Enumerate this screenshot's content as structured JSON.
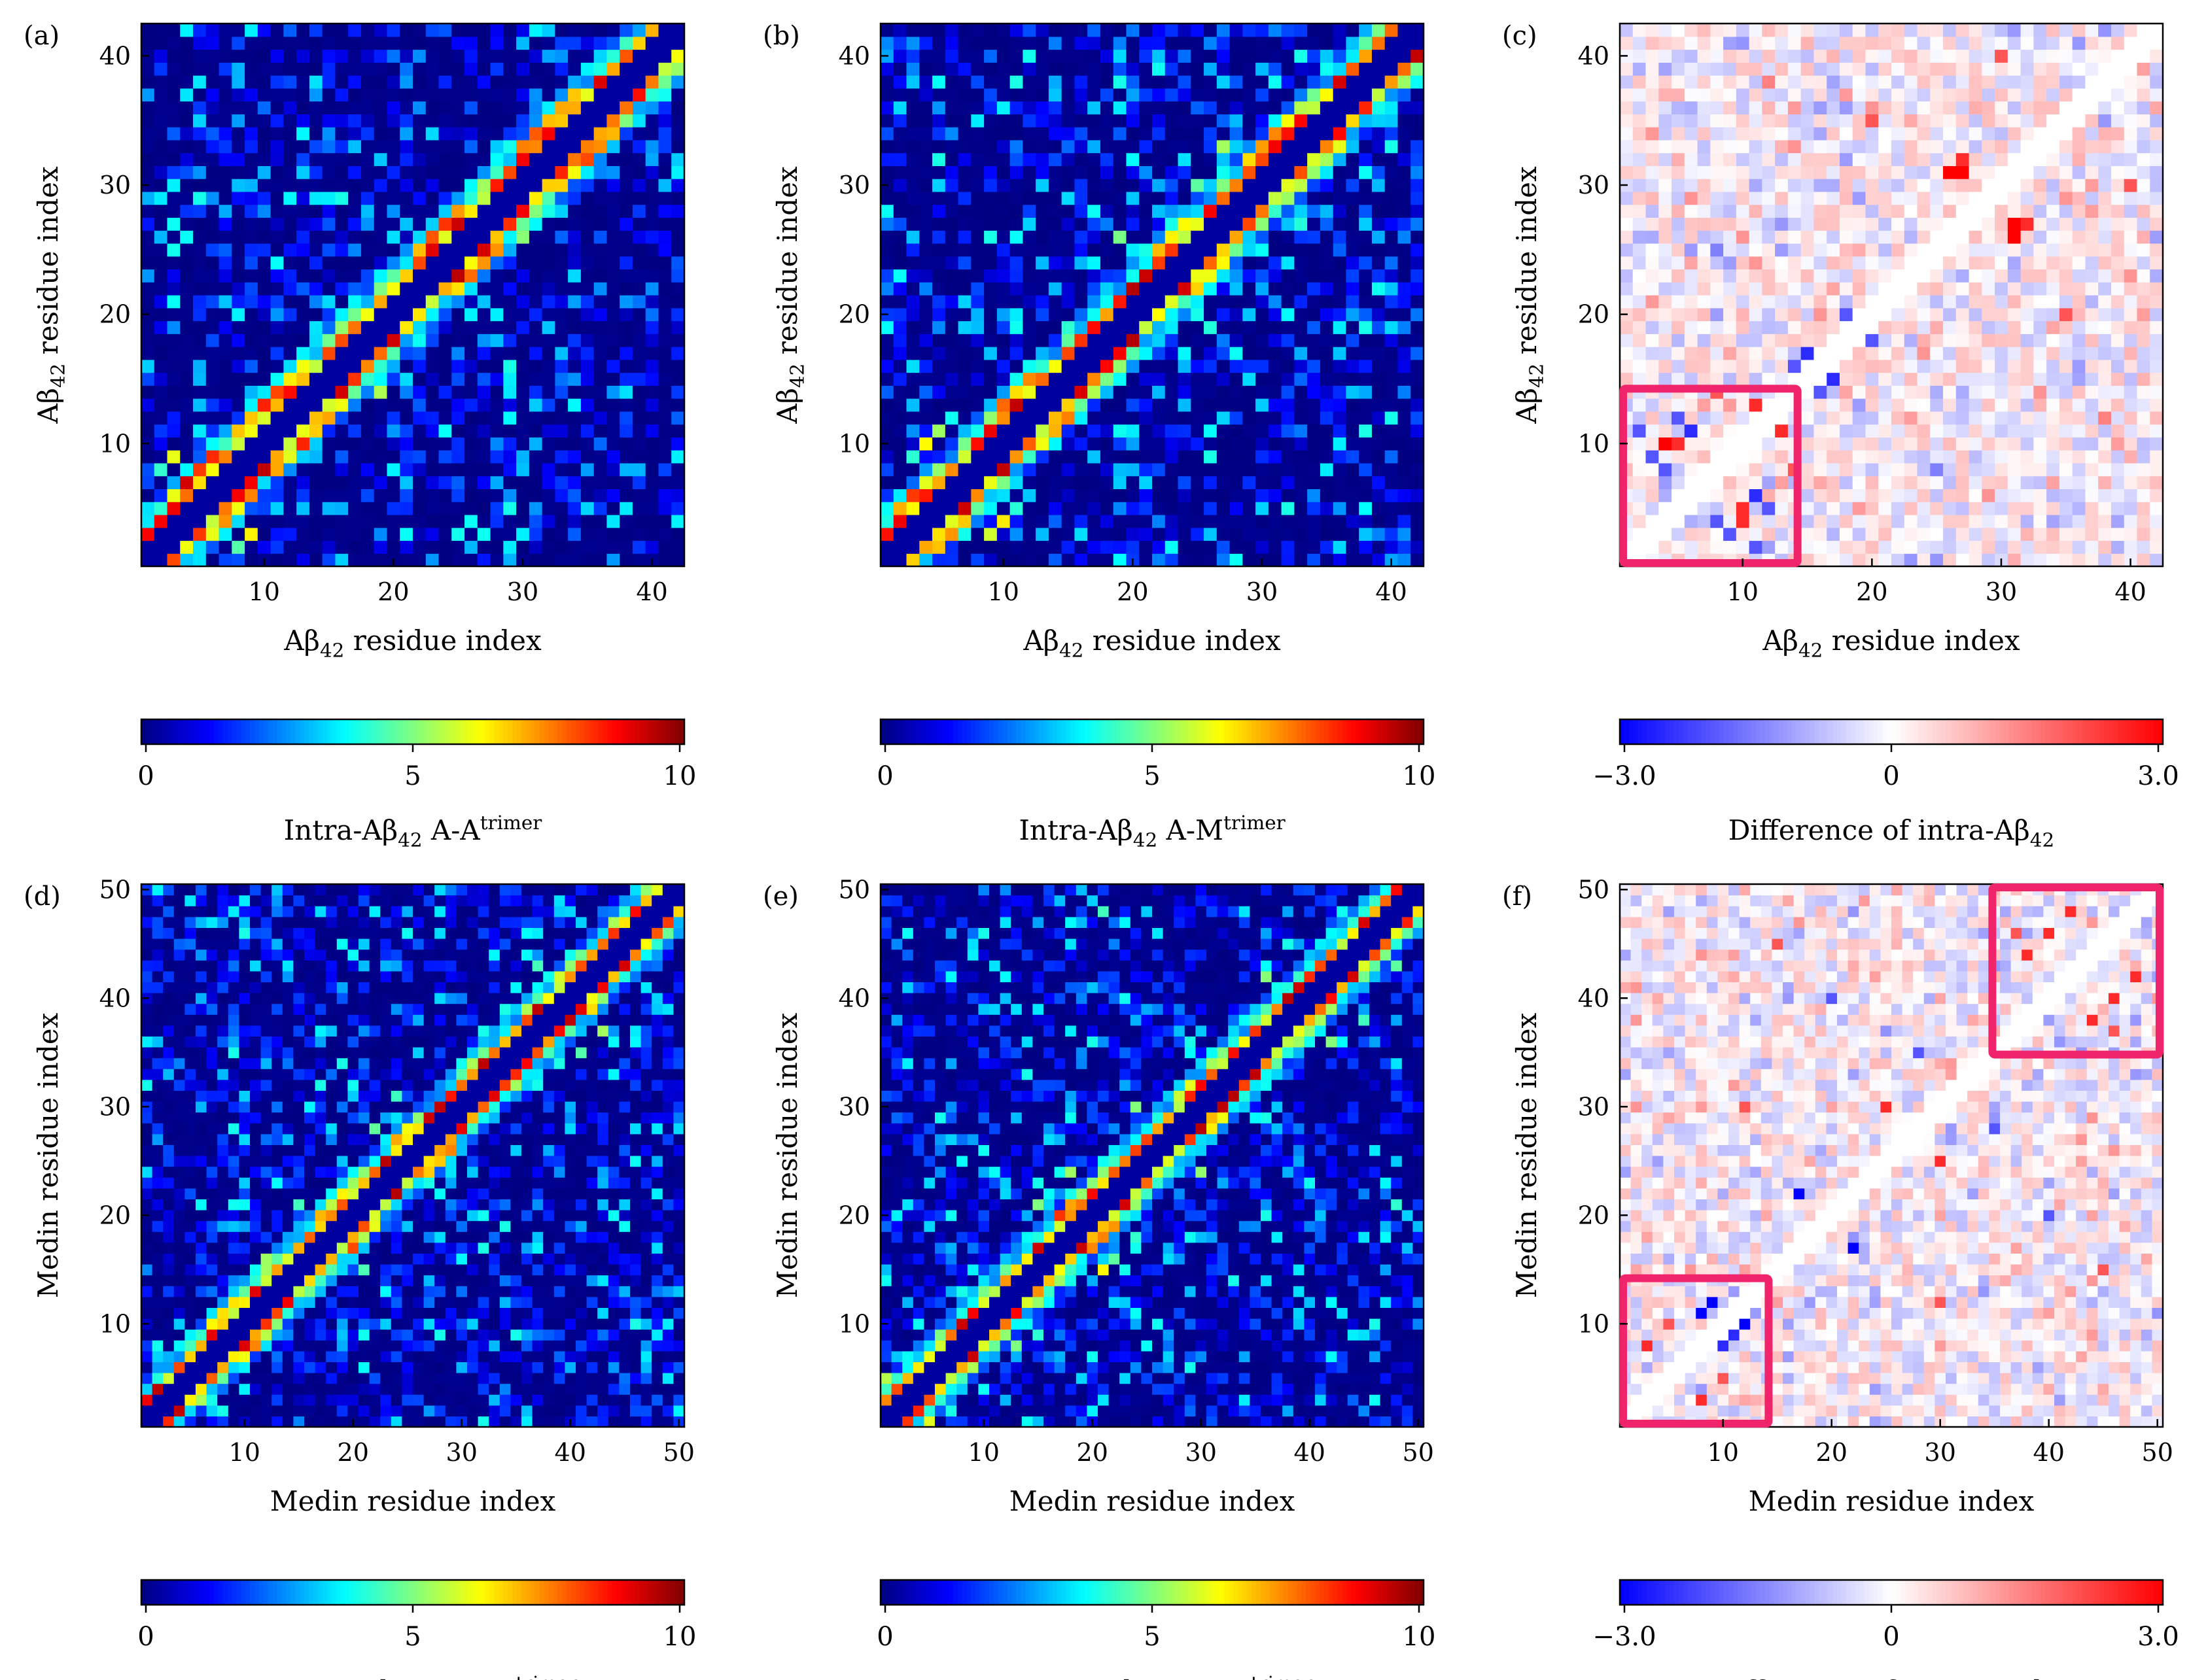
{
  "chart_data": [
    {
      "panel": "(a)",
      "type": "heatmap",
      "n": 42,
      "xlabel_main": "Aβ",
      "xlabel_sub": "42",
      "xlabel_rest": " residue index",
      "ylabel_main": "Aβ",
      "ylabel_sub": "42",
      "ylabel_rest": " residue index",
      "xticks": [
        10,
        20,
        30,
        40
      ],
      "yticks": [
        10,
        20,
        30,
        40
      ],
      "scale": "jet",
      "vmin": 0,
      "vmax": 10,
      "colorbar_ticks": [
        "0",
        "5",
        "10"
      ],
      "colorbar_label_main": "Intra-Aβ",
      "colorbar_label_sub": "42",
      "colorbar_label_rest": " A-A",
      "colorbar_label_sup": "trimer",
      "hot_spots": [
        [
          4,
          7,
          7
        ],
        [
          5,
          8,
          6
        ],
        [
          6,
          9,
          6
        ],
        [
          10,
          13,
          6
        ],
        [
          11,
          14,
          6
        ],
        [
          12,
          15,
          5
        ],
        [
          13,
          16,
          5
        ],
        [
          17,
          20,
          4
        ],
        [
          22,
          25,
          5
        ],
        [
          23,
          26,
          6
        ],
        [
          24,
          27,
          6
        ],
        [
          25,
          28,
          5
        ],
        [
          31,
          34,
          6
        ],
        [
          32,
          35,
          6
        ],
        [
          33,
          36,
          6
        ],
        [
          34,
          37,
          6
        ],
        [
          30,
          33,
          5
        ],
        [
          8,
          11,
          5
        ],
        [
          9,
          12,
          5
        ],
        [
          3,
          6,
          5
        ],
        [
          2,
          8,
          4
        ],
        [
          3,
          9,
          4
        ],
        [
          5,
          11,
          3
        ],
        [
          14,
          19,
          3
        ],
        [
          20,
          26,
          3
        ],
        [
          26,
          30,
          3
        ],
        [
          20,
          28,
          2.5
        ],
        [
          28,
          33,
          3
        ]
      ]
    },
    {
      "panel": "(b)",
      "type": "heatmap",
      "n": 42,
      "xlabel_main": "Aβ",
      "xlabel_sub": "42",
      "xlabel_rest": " residue index",
      "ylabel_main": "Aβ",
      "ylabel_sub": "42",
      "ylabel_rest": " residue index",
      "xticks": [
        10,
        20,
        30,
        40
      ],
      "yticks": [
        10,
        20,
        30,
        40
      ],
      "scale": "jet",
      "vmin": 0,
      "vmax": 10,
      "colorbar_ticks": [
        "0",
        "5",
        "10"
      ],
      "colorbar_label_main": "Intra-Aβ",
      "colorbar_label_sub": "42",
      "colorbar_label_rest": " A-M",
      "colorbar_label_sup": "trimer",
      "hot_spots": [
        [
          2,
          5,
          6
        ],
        [
          3,
          6,
          6
        ],
        [
          4,
          7,
          5
        ],
        [
          10,
          13,
          6
        ],
        [
          11,
          14,
          6
        ],
        [
          12,
          15,
          5
        ],
        [
          22,
          25,
          5
        ],
        [
          23,
          26,
          5
        ],
        [
          24,
          27,
          5
        ],
        [
          29,
          32,
          5
        ],
        [
          30,
          33,
          5
        ],
        [
          31,
          34,
          5
        ],
        [
          32,
          35,
          5
        ],
        [
          33,
          36,
          5
        ],
        [
          3,
          9,
          4
        ],
        [
          4,
          10,
          4
        ],
        [
          5,
          11,
          3
        ],
        [
          6,
          12,
          3
        ],
        [
          15,
          19,
          3
        ],
        [
          20,
          25,
          3
        ],
        [
          25,
          30,
          3
        ],
        [
          19,
          26,
          2.5
        ],
        [
          27,
          33,
          3
        ]
      ]
    },
    {
      "panel": "(c)",
      "type": "heatmap",
      "n": 42,
      "xlabel_main": "Aβ",
      "xlabel_sub": "42",
      "xlabel_rest": " residue index",
      "ylabel_main": "Aβ",
      "ylabel_sub": "42",
      "ylabel_rest": " residue index",
      "xticks": [
        10,
        20,
        30,
        40
      ],
      "yticks": [
        10,
        20,
        30,
        40
      ],
      "scale": "bwr",
      "vmin": -3.0,
      "vmax": 3.0,
      "colorbar_ticks": [
        "−3.0",
        "0",
        "3.0"
      ],
      "colorbar_label_main": "Difference of intra-Aβ",
      "colorbar_label_sub": "42",
      "colorbar_label_rest": "",
      "colorbar_label_sup": "",
      "highlight_boxes": [
        [
          1,
          14,
          1,
          14
        ]
      ],
      "hot_spots": [
        [
          4,
          10,
          3
        ],
        [
          5,
          10,
          2.5
        ],
        [
          11,
          13,
          2.5
        ],
        [
          8,
          14,
          2
        ],
        [
          6,
          11,
          -2.5
        ],
        [
          3,
          9,
          -2
        ],
        [
          4,
          8,
          -2
        ],
        [
          5,
          12,
          -2
        ],
        [
          2,
          11,
          -2
        ],
        [
          10,
          4,
          2.5
        ],
        [
          10,
          5,
          2.5
        ],
        [
          13,
          11,
          2.5
        ],
        [
          14,
          8,
          2
        ],
        [
          11,
          6,
          -2.5
        ],
        [
          9,
          3,
          -2
        ],
        [
          8,
          4,
          -2
        ],
        [
          12,
          5,
          -2
        ],
        [
          11,
          2,
          -2
        ],
        [
          26,
          31,
          3
        ],
        [
          27,
          31,
          3
        ],
        [
          27,
          32,
          2.5
        ],
        [
          31,
          26,
          3
        ],
        [
          31,
          27,
          3
        ],
        [
          32,
          27,
          2.5
        ],
        [
          15,
          17,
          -2.5
        ],
        [
          17,
          15,
          -2.5
        ],
        [
          14,
          16,
          -2
        ],
        [
          16,
          14,
          -2
        ],
        [
          18,
          20,
          -2
        ],
        [
          20,
          18,
          -2
        ],
        [
          20,
          35,
          2
        ],
        [
          35,
          20,
          2
        ],
        [
          8,
          25,
          -1.5
        ],
        [
          25,
          8,
          -1.5
        ],
        [
          12,
          38,
          1.5
        ],
        [
          38,
          12,
          1.5
        ],
        [
          30,
          40,
          2
        ],
        [
          40,
          30,
          2
        ]
      ]
    },
    {
      "panel": "(d)",
      "type": "heatmap",
      "n": 50,
      "xlabel_main": "Medin residue index",
      "xlabel_sub": "",
      "xlabel_rest": "",
      "ylabel_main": "Medin residue index",
      "ylabel_sub": "",
      "ylabel_rest": "",
      "xticks": [
        10,
        20,
        30,
        40,
        50
      ],
      "yticks": [
        10,
        20,
        30,
        40,
        50
      ],
      "scale": "jet",
      "vmin": 0,
      "vmax": 10,
      "colorbar_ticks": [
        "0",
        "5",
        "10"
      ],
      "colorbar_label_main": "Intra-Medinin M-M",
      "colorbar_label_sub": "",
      "colorbar_label_rest": "",
      "colorbar_label_sup": "trimer",
      "hot_spots": [
        [
          1,
          3,
          6
        ],
        [
          2,
          4,
          5
        ],
        [
          7,
          10,
          6
        ],
        [
          8,
          11,
          6
        ],
        [
          9,
          12,
          5
        ],
        [
          17,
          20,
          6
        ],
        [
          18,
          21,
          5
        ],
        [
          19,
          22,
          5
        ],
        [
          24,
          27,
          5
        ],
        [
          25,
          28,
          5
        ],
        [
          26,
          29,
          5
        ],
        [
          39,
          42,
          5
        ],
        [
          40,
          43,
          5
        ],
        [
          2,
          8,
          3
        ],
        [
          4,
          10,
          3
        ],
        [
          12,
          16,
          3
        ],
        [
          15,
          21,
          3
        ],
        [
          22,
          28,
          3
        ],
        [
          24,
          31,
          3
        ],
        [
          35,
          41,
          3
        ],
        [
          37,
          43,
          3
        ],
        [
          41,
          47,
          2.5
        ],
        [
          10,
          21,
          2
        ],
        [
          30,
          40,
          2
        ]
      ]
    },
    {
      "panel": "(e)",
      "type": "heatmap",
      "n": 50,
      "xlabel_main": "Medin residue index",
      "xlabel_sub": "",
      "xlabel_rest": "",
      "ylabel_main": "Medin residue index",
      "ylabel_sub": "",
      "ylabel_rest": "",
      "xticks": [
        10,
        20,
        30,
        40,
        50
      ],
      "yticks": [
        10,
        20,
        30,
        40,
        50
      ],
      "scale": "jet",
      "vmin": 0,
      "vmax": 10,
      "colorbar_ticks": [
        "0",
        "5",
        "10"
      ],
      "colorbar_label_main": "Intra-Medinin A-M",
      "colorbar_label_sub": "",
      "colorbar_label_rest": "",
      "colorbar_label_sup": "trimer",
      "hot_spots": [
        [
          1,
          3,
          6
        ],
        [
          2,
          4,
          6
        ],
        [
          3,
          5,
          5
        ],
        [
          17,
          20,
          6
        ],
        [
          18,
          21,
          6
        ],
        [
          19,
          22,
          5
        ],
        [
          28,
          31,
          4
        ],
        [
          29,
          32,
          4
        ],
        [
          38,
          41,
          4
        ],
        [
          39,
          42,
          4
        ],
        [
          1,
          5,
          4
        ],
        [
          2,
          7,
          3
        ],
        [
          15,
          21,
          4
        ],
        [
          16,
          22,
          3
        ],
        [
          18,
          24,
          3
        ],
        [
          24,
          30,
          3
        ],
        [
          36,
          42,
          3
        ],
        [
          38,
          45,
          3
        ],
        [
          43,
          48,
          3
        ],
        [
          8,
          13,
          3
        ],
        [
          9,
          15,
          2.5
        ],
        [
          21,
          48,
          3
        ],
        [
          48,
          21,
          3
        ]
      ]
    },
    {
      "panel": "(f)",
      "type": "heatmap",
      "n": 50,
      "xlabel_main": "Medin residue index",
      "xlabel_sub": "",
      "xlabel_rest": "",
      "ylabel_main": "Medin residue index",
      "ylabel_sub": "",
      "ylabel_rest": "",
      "xticks": [
        10,
        20,
        30,
        40,
        50
      ],
      "yticks": [
        10,
        20,
        30,
        40,
        50
      ],
      "scale": "bwr",
      "vmin": -3.0,
      "vmax": 3.0,
      "colorbar_ticks": [
        "−3.0",
        "0",
        "3.0"
      ],
      "colorbar_label_main": "Difference of intra-Medin",
      "colorbar_label_sub": "",
      "colorbar_label_rest": "",
      "colorbar_label_sup": "",
      "highlight_boxes": [
        [
          1,
          14,
          1,
          14
        ],
        [
          35,
          50,
          35,
          50
        ]
      ],
      "hot_spots": [
        [
          8,
          11,
          -3
        ],
        [
          9,
          12,
          -3
        ],
        [
          10,
          8,
          -2.5
        ],
        [
          12,
          10,
          -3
        ],
        [
          11,
          9,
          -2.5
        ],
        [
          3,
          8,
          2.5
        ],
        [
          5,
          10,
          2
        ],
        [
          8,
          3,
          2.5
        ],
        [
          10,
          5,
          2
        ],
        [
          38,
          44,
          2.5
        ],
        [
          40,
          46,
          2.5
        ],
        [
          42,
          48,
          2.5
        ],
        [
          44,
          38,
          2.5
        ],
        [
          46,
          40,
          2.5
        ],
        [
          48,
          42,
          2.5
        ],
        [
          37,
          46,
          2
        ],
        [
          46,
          37,
          2
        ],
        [
          17,
          22,
          -3
        ],
        [
          22,
          17,
          -3
        ],
        [
          25,
          30,
          2.5
        ],
        [
          30,
          25,
          2.5
        ],
        [
          20,
          40,
          -2
        ],
        [
          40,
          20,
          -2
        ],
        [
          15,
          45,
          2
        ],
        [
          45,
          15,
          2
        ],
        [
          28,
          35,
          -2
        ],
        [
          35,
          28,
          -2
        ],
        [
          12,
          30,
          2
        ],
        [
          30,
          12,
          2
        ]
      ]
    }
  ]
}
